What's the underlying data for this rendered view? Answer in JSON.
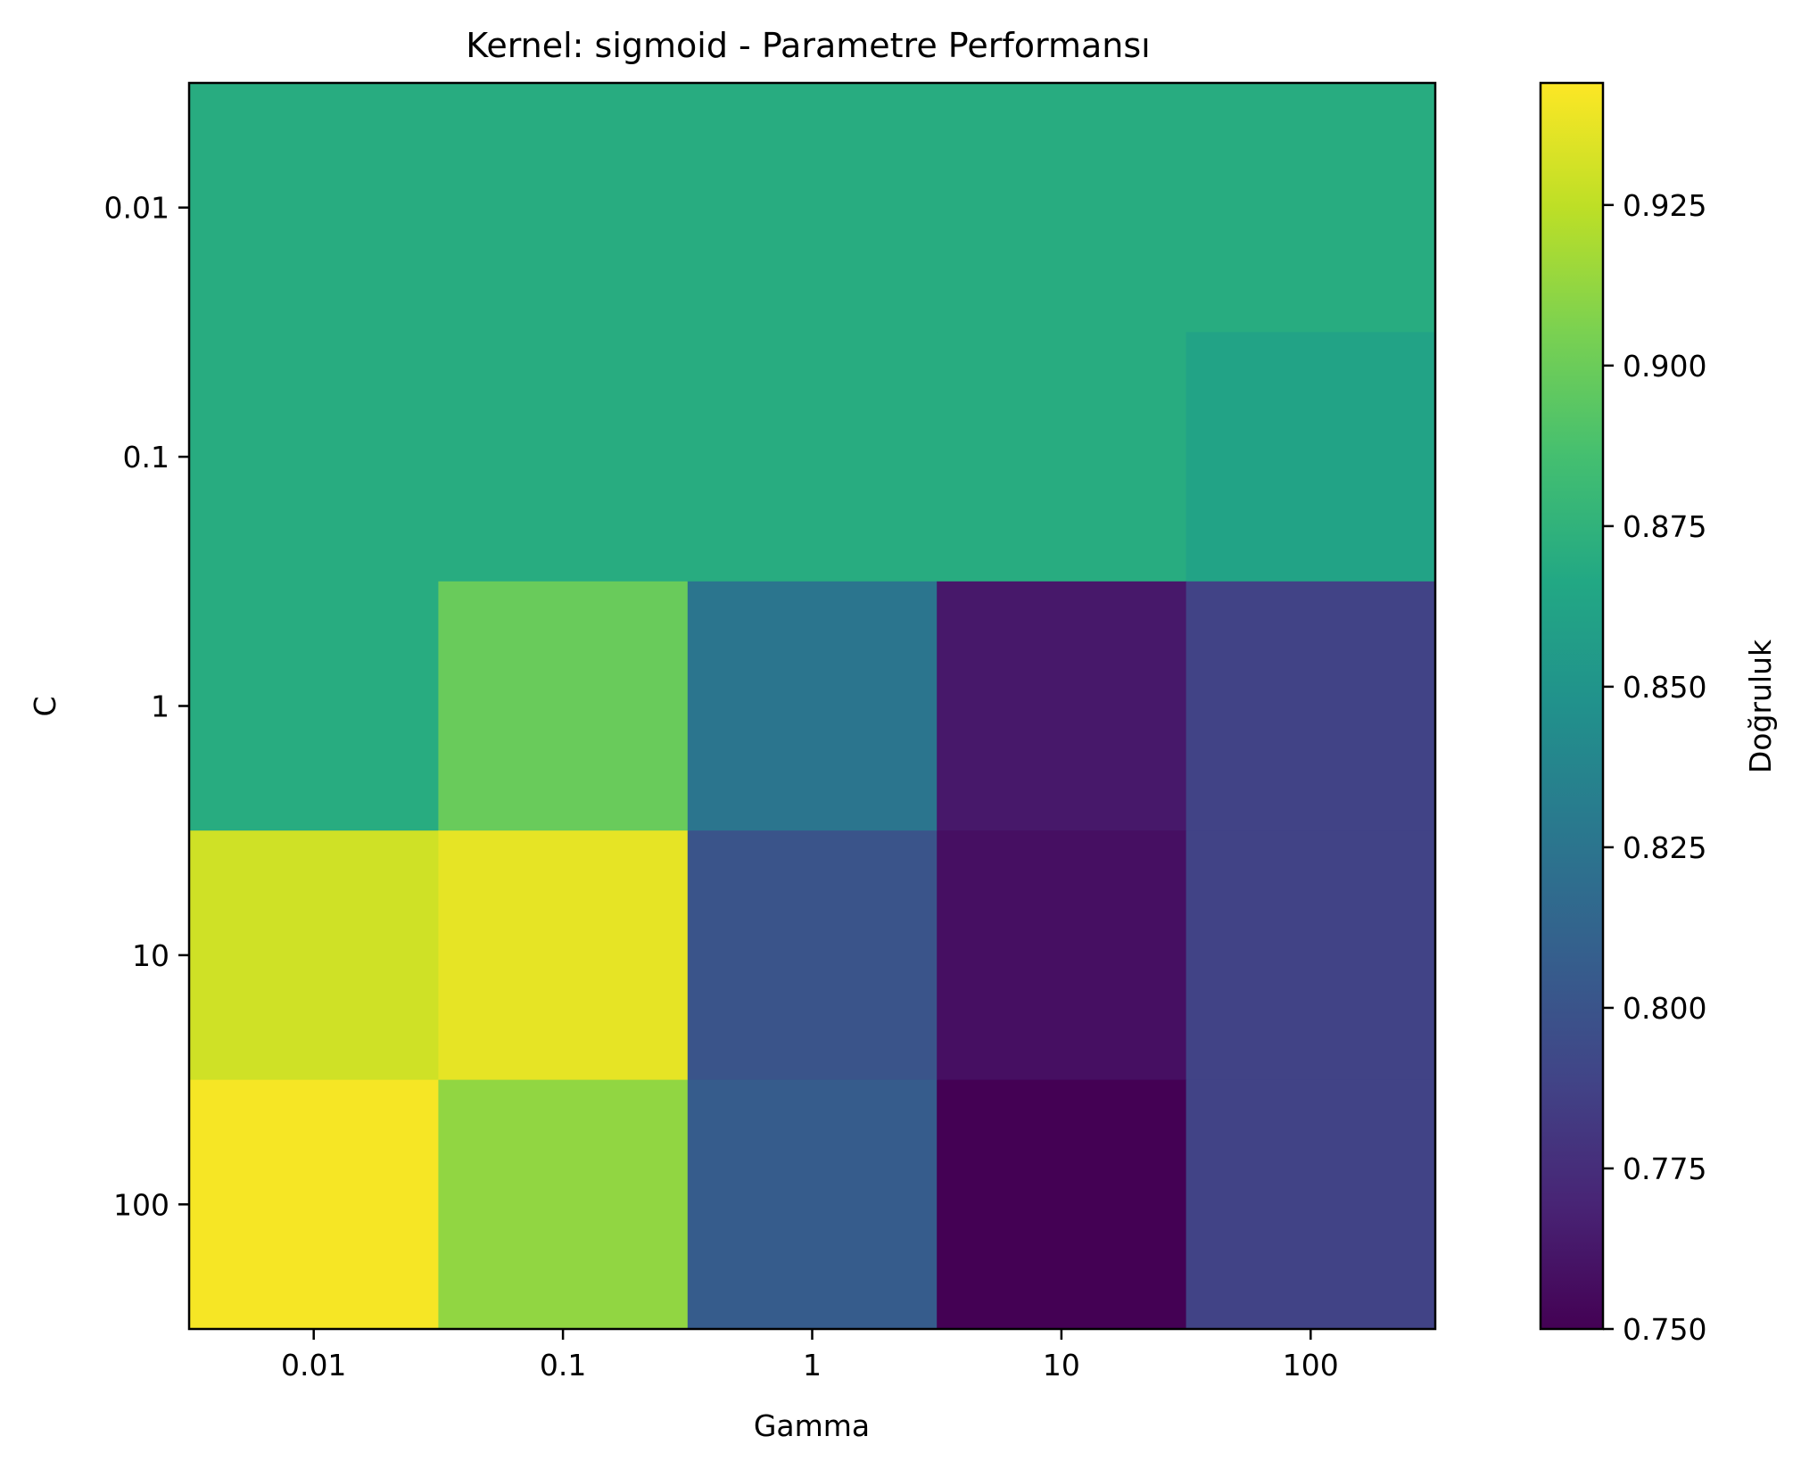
{
  "chart_data": {
    "type": "heatmap",
    "title": "Kernel: sigmoid - Parametre Performansı",
    "xlabel": "Gamma",
    "ylabel": "C",
    "x_categories": [
      "0.01",
      "0.1",
      "1",
      "10",
      "100"
    ],
    "y_categories": [
      "0.01",
      "0.1",
      "1",
      "10",
      "100"
    ],
    "values": [
      [
        0.87,
        0.87,
        0.87,
        0.87,
        0.87
      ],
      [
        0.87,
        0.87,
        0.87,
        0.87,
        0.862
      ],
      [
        0.87,
        0.899,
        0.825,
        0.763,
        0.788
      ],
      [
        0.93,
        0.937,
        0.8,
        0.758,
        0.788
      ],
      [
        0.942,
        0.912,
        0.806,
        0.75,
        0.788
      ]
    ],
    "colorbar": {
      "label": "Doğruluk",
      "vmin": 0.75,
      "vmax": 0.944,
      "ticks": [
        0.75,
        0.775,
        0.8,
        0.825,
        0.85,
        0.875,
        0.9,
        0.925
      ],
      "tick_labels": [
        "0.750",
        "0.775",
        "0.800",
        "0.825",
        "0.850",
        "0.875",
        "0.900",
        "0.925"
      ],
      "colormap": "viridis"
    }
  }
}
